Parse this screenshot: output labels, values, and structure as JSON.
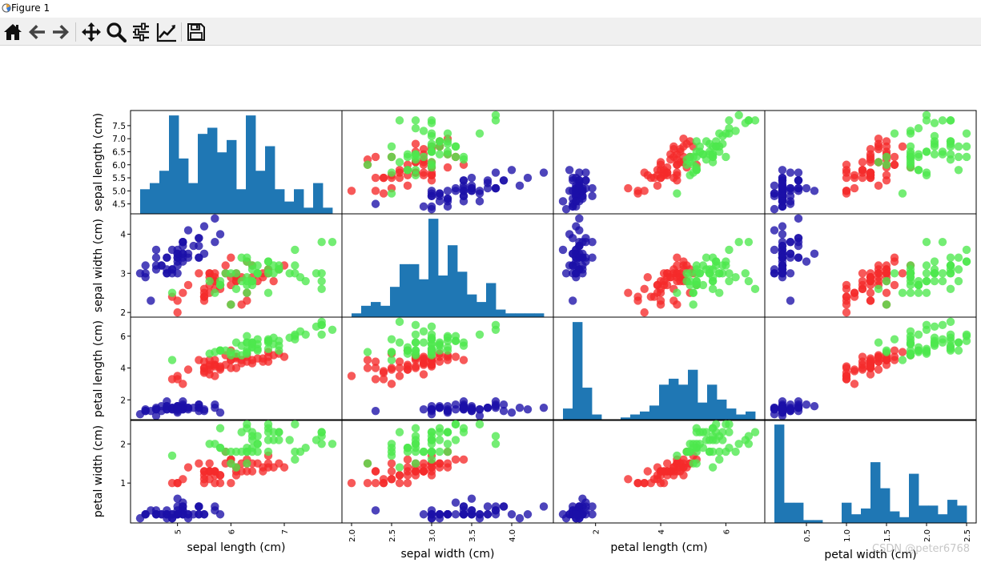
{
  "window": {
    "title": "Figure 1"
  },
  "toolbar": {
    "buttons": [
      {
        "name": "home-icon",
        "tooltip": "Reset original view"
      },
      {
        "name": "back-arrow-icon",
        "tooltip": "Back"
      },
      {
        "name": "forward-arrow-icon",
        "tooltip": "Forward"
      },
      {
        "name": "pan-icon",
        "tooltip": "Pan"
      },
      {
        "name": "zoom-icon",
        "tooltip": "Zoom"
      },
      {
        "name": "subplots-icon",
        "tooltip": "Configure subplots"
      },
      {
        "name": "edit-curves-icon",
        "tooltip": "Edit axis"
      },
      {
        "name": "save-icon",
        "tooltip": "Save"
      }
    ]
  },
  "watermark": "CSDN @peter6768",
  "chart_data": {
    "type": "scatter-matrix",
    "variables": [
      "sepal length (cm)",
      "sepal width (cm)",
      "petal length (cm)",
      "petal width (cm)"
    ],
    "ranges": [
      [
        4.3,
        7.9
      ],
      [
        2.0,
        4.4
      ],
      [
        1.0,
        6.9
      ],
      [
        0.1,
        2.5
      ]
    ],
    "ticks": [
      [
        "5",
        "6",
        "7"
      ],
      [
        "2.0",
        "2.5",
        "3.0",
        "3.5",
        "4.0"
      ],
      [
        "2",
        "4",
        "6"
      ],
      [
        "0.5",
        "1.0",
        "1.5",
        "2.0",
        "2.5"
      ]
    ],
    "y_ticks": [
      [
        "4.5",
        "5.0",
        "5.5",
        "6.0",
        "6.5",
        "7.0",
        "7.5"
      ],
      [
        "2",
        "3",
        "4"
      ],
      [
        "2",
        "4",
        "6"
      ],
      [
        "1",
        "2"
      ]
    ],
    "hist_bins": 20,
    "hist_color": "#1f77b4",
    "species_colors": [
      "#1b0fa8",
      "#f52a2a",
      "#4de84d"
    ],
    "points": [
      [
        5.1,
        3.5,
        1.4,
        0.2,
        0
      ],
      [
        4.9,
        3.0,
        1.4,
        0.2,
        0
      ],
      [
        4.7,
        3.2,
        1.3,
        0.2,
        0
      ],
      [
        4.6,
        3.1,
        1.5,
        0.2,
        0
      ],
      [
        5.0,
        3.6,
        1.4,
        0.2,
        0
      ],
      [
        5.4,
        3.9,
        1.7,
        0.4,
        0
      ],
      [
        4.6,
        3.4,
        1.4,
        0.3,
        0
      ],
      [
        5.0,
        3.4,
        1.5,
        0.2,
        0
      ],
      [
        4.4,
        2.9,
        1.4,
        0.2,
        0
      ],
      [
        4.9,
        3.1,
        1.5,
        0.1,
        0
      ],
      [
        5.4,
        3.7,
        1.5,
        0.2,
        0
      ],
      [
        4.8,
        3.4,
        1.6,
        0.2,
        0
      ],
      [
        4.8,
        3.0,
        1.4,
        0.1,
        0
      ],
      [
        4.3,
        3.0,
        1.1,
        0.1,
        0
      ],
      [
        5.8,
        4.0,
        1.2,
        0.2,
        0
      ],
      [
        5.7,
        4.4,
        1.5,
        0.4,
        0
      ],
      [
        5.4,
        3.9,
        1.3,
        0.4,
        0
      ],
      [
        5.1,
        3.5,
        1.4,
        0.3,
        0
      ],
      [
        5.7,
        3.8,
        1.7,
        0.3,
        0
      ],
      [
        5.1,
        3.8,
        1.5,
        0.3,
        0
      ],
      [
        5.4,
        3.4,
        1.7,
        0.2,
        0
      ],
      [
        5.1,
        3.7,
        1.5,
        0.4,
        0
      ],
      [
        4.6,
        3.6,
        1.0,
        0.2,
        0
      ],
      [
        5.1,
        3.3,
        1.7,
        0.5,
        0
      ],
      [
        4.8,
        3.4,
        1.9,
        0.2,
        0
      ],
      [
        5.0,
        3.0,
        1.6,
        0.2,
        0
      ],
      [
        5.0,
        3.4,
        1.6,
        0.4,
        0
      ],
      [
        5.2,
        3.5,
        1.5,
        0.2,
        0
      ],
      [
        5.2,
        3.4,
        1.4,
        0.2,
        0
      ],
      [
        4.7,
        3.2,
        1.6,
        0.2,
        0
      ],
      [
        4.8,
        3.1,
        1.6,
        0.2,
        0
      ],
      [
        5.4,
        3.4,
        1.5,
        0.4,
        0
      ],
      [
        5.2,
        4.1,
        1.5,
        0.1,
        0
      ],
      [
        5.5,
        4.2,
        1.4,
        0.2,
        0
      ],
      [
        4.9,
        3.1,
        1.5,
        0.2,
        0
      ],
      [
        5.0,
        3.2,
        1.2,
        0.2,
        0
      ],
      [
        5.5,
        3.5,
        1.3,
        0.2,
        0
      ],
      [
        4.9,
        3.6,
        1.4,
        0.1,
        0
      ],
      [
        4.4,
        3.0,
        1.3,
        0.2,
        0
      ],
      [
        5.1,
        3.4,
        1.5,
        0.2,
        0
      ],
      [
        5.0,
        3.5,
        1.3,
        0.3,
        0
      ],
      [
        4.5,
        2.3,
        1.3,
        0.3,
        0
      ],
      [
        4.4,
        3.2,
        1.3,
        0.2,
        0
      ],
      [
        5.0,
        3.5,
        1.6,
        0.6,
        0
      ],
      [
        5.1,
        3.8,
        1.9,
        0.4,
        0
      ],
      [
        4.8,
        3.0,
        1.4,
        0.3,
        0
      ],
      [
        5.1,
        3.8,
        1.6,
        0.2,
        0
      ],
      [
        4.6,
        3.2,
        1.4,
        0.2,
        0
      ],
      [
        5.3,
        3.7,
        1.5,
        0.2,
        0
      ],
      [
        5.0,
        3.3,
        1.4,
        0.2,
        0
      ],
      [
        7.0,
        3.2,
        4.7,
        1.4,
        1
      ],
      [
        6.4,
        3.2,
        4.5,
        1.5,
        1
      ],
      [
        6.9,
        3.1,
        4.9,
        1.5,
        1
      ],
      [
        5.5,
        2.3,
        4.0,
        1.3,
        1
      ],
      [
        6.5,
        2.8,
        4.6,
        1.5,
        1
      ],
      [
        5.7,
        2.8,
        4.5,
        1.3,
        1
      ],
      [
        6.3,
        3.3,
        4.7,
        1.6,
        1
      ],
      [
        4.9,
        2.4,
        3.3,
        1.0,
        1
      ],
      [
        6.6,
        2.9,
        4.6,
        1.3,
        1
      ],
      [
        5.2,
        2.7,
        3.9,
        1.4,
        1
      ],
      [
        5.0,
        2.0,
        3.5,
        1.0,
        1
      ],
      [
        5.9,
        3.0,
        4.2,
        1.5,
        1
      ],
      [
        6.0,
        2.2,
        4.0,
        1.0,
        1
      ],
      [
        6.1,
        2.9,
        4.7,
        1.4,
        1
      ],
      [
        5.6,
        2.9,
        3.6,
        1.3,
        1
      ],
      [
        6.7,
        3.1,
        4.4,
        1.4,
        1
      ],
      [
        5.6,
        3.0,
        4.5,
        1.5,
        1
      ],
      [
        5.8,
        2.7,
        4.1,
        1.0,
        1
      ],
      [
        6.2,
        2.2,
        4.5,
        1.5,
        1
      ],
      [
        5.6,
        2.5,
        3.9,
        1.1,
        1
      ],
      [
        5.9,
        3.2,
        4.8,
        1.8,
        1
      ],
      [
        6.1,
        2.8,
        4.0,
        1.3,
        1
      ],
      [
        6.3,
        2.5,
        4.9,
        1.5,
        1
      ],
      [
        6.1,
        2.8,
        4.7,
        1.2,
        1
      ],
      [
        6.4,
        2.9,
        4.3,
        1.3,
        1
      ],
      [
        6.6,
        3.0,
        4.4,
        1.4,
        1
      ],
      [
        6.8,
        2.8,
        4.8,
        1.4,
        1
      ],
      [
        6.7,
        3.0,
        5.0,
        1.7,
        1
      ],
      [
        6.0,
        2.9,
        4.5,
        1.5,
        1
      ],
      [
        5.7,
        2.6,
        3.5,
        1.0,
        1
      ],
      [
        5.5,
        2.4,
        3.8,
        1.1,
        1
      ],
      [
        5.5,
        2.4,
        3.7,
        1.0,
        1
      ],
      [
        5.8,
        2.7,
        3.9,
        1.2,
        1
      ],
      [
        6.0,
        2.7,
        5.1,
        1.6,
        1
      ],
      [
        5.4,
        3.0,
        4.5,
        1.5,
        1
      ],
      [
        6.0,
        3.4,
        4.5,
        1.6,
        1
      ],
      [
        6.7,
        3.1,
        4.7,
        1.5,
        1
      ],
      [
        6.3,
        2.3,
        4.4,
        1.3,
        1
      ],
      [
        5.6,
        3.0,
        4.1,
        1.3,
        1
      ],
      [
        5.5,
        2.5,
        4.0,
        1.3,
        1
      ],
      [
        5.5,
        2.6,
        4.4,
        1.2,
        1
      ],
      [
        6.1,
        3.0,
        4.6,
        1.4,
        1
      ],
      [
        5.8,
        2.6,
        4.0,
        1.2,
        1
      ],
      [
        5.0,
        2.3,
        3.3,
        1.0,
        1
      ],
      [
        5.6,
        2.7,
        4.2,
        1.3,
        1
      ],
      [
        5.7,
        3.0,
        4.2,
        1.2,
        1
      ],
      [
        5.7,
        2.9,
        4.2,
        1.3,
        1
      ],
      [
        6.2,
        2.9,
        4.3,
        1.3,
        1
      ],
      [
        5.1,
        2.5,
        3.0,
        1.1,
        1
      ],
      [
        5.7,
        2.8,
        4.1,
        1.3,
        1
      ],
      [
        6.3,
        3.3,
        6.0,
        2.5,
        2
      ],
      [
        5.8,
        2.7,
        5.1,
        1.9,
        2
      ],
      [
        7.1,
        3.0,
        5.9,
        2.1,
        2
      ],
      [
        6.3,
        2.9,
        5.6,
        1.8,
        2
      ],
      [
        6.5,
        3.0,
        5.8,
        2.2,
        2
      ],
      [
        7.6,
        3.0,
        6.6,
        2.1,
        2
      ],
      [
        4.9,
        2.5,
        4.5,
        1.7,
        2
      ],
      [
        7.3,
        2.9,
        6.3,
        1.8,
        2
      ],
      [
        6.7,
        2.5,
        5.8,
        1.8,
        2
      ],
      [
        7.2,
        3.6,
        6.1,
        2.5,
        2
      ],
      [
        6.5,
        3.2,
        5.1,
        2.0,
        2
      ],
      [
        6.4,
        2.7,
        5.3,
        1.9,
        2
      ],
      [
        6.8,
        3.0,
        5.5,
        2.1,
        2
      ],
      [
        5.7,
        2.5,
        5.0,
        2.0,
        2
      ],
      [
        5.8,
        2.8,
        5.1,
        2.4,
        2
      ],
      [
        6.4,
        3.2,
        5.3,
        2.3,
        2
      ],
      [
        6.5,
        3.0,
        5.5,
        1.8,
        2
      ],
      [
        7.7,
        3.8,
        6.7,
        2.2,
        2
      ],
      [
        7.7,
        2.6,
        6.9,
        2.3,
        2
      ],
      [
        6.0,
        2.2,
        5.0,
        1.5,
        2
      ],
      [
        6.9,
        3.2,
        5.7,
        2.3,
        2
      ],
      [
        5.6,
        2.8,
        4.9,
        2.0,
        2
      ],
      [
        7.7,
        2.8,
        6.7,
        2.0,
        2
      ],
      [
        6.3,
        2.7,
        4.9,
        1.8,
        2
      ],
      [
        6.7,
        3.3,
        5.7,
        2.1,
        2
      ],
      [
        7.2,
        3.2,
        6.0,
        1.8,
        2
      ],
      [
        6.2,
        2.8,
        4.8,
        1.8,
        2
      ],
      [
        6.1,
        3.0,
        4.9,
        1.8,
        2
      ],
      [
        6.4,
        2.8,
        5.6,
        2.1,
        2
      ],
      [
        7.2,
        3.0,
        5.8,
        1.6,
        2
      ],
      [
        7.4,
        2.8,
        6.1,
        1.9,
        2
      ],
      [
        7.9,
        3.8,
        6.4,
        2.0,
        2
      ],
      [
        6.4,
        2.8,
        5.6,
        2.2,
        2
      ],
      [
        6.3,
        2.8,
        5.1,
        1.5,
        2
      ],
      [
        6.1,
        2.6,
        5.6,
        1.4,
        2
      ],
      [
        7.7,
        3.0,
        6.1,
        2.3,
        2
      ],
      [
        6.3,
        3.4,
        5.6,
        2.4,
        2
      ],
      [
        6.4,
        3.1,
        5.5,
        1.8,
        2
      ],
      [
        6.0,
        3.0,
        4.8,
        1.8,
        2
      ],
      [
        6.9,
        3.1,
        5.4,
        2.1,
        2
      ],
      [
        6.7,
        3.1,
        5.6,
        2.4,
        2
      ],
      [
        6.9,
        3.1,
        5.1,
        2.3,
        2
      ],
      [
        5.8,
        2.7,
        5.1,
        1.9,
        2
      ],
      [
        6.8,
        3.2,
        5.9,
        2.3,
        2
      ],
      [
        6.7,
        3.3,
        5.7,
        2.5,
        2
      ],
      [
        6.7,
        3.0,
        5.2,
        2.3,
        2
      ],
      [
        6.3,
        2.5,
        5.0,
        1.9,
        2
      ],
      [
        6.5,
        3.0,
        5.2,
        2.0,
        2
      ],
      [
        6.2,
        3.4,
        5.4,
        2.3,
        2
      ],
      [
        5.9,
        3.0,
        5.1,
        1.8,
        2
      ]
    ]
  }
}
